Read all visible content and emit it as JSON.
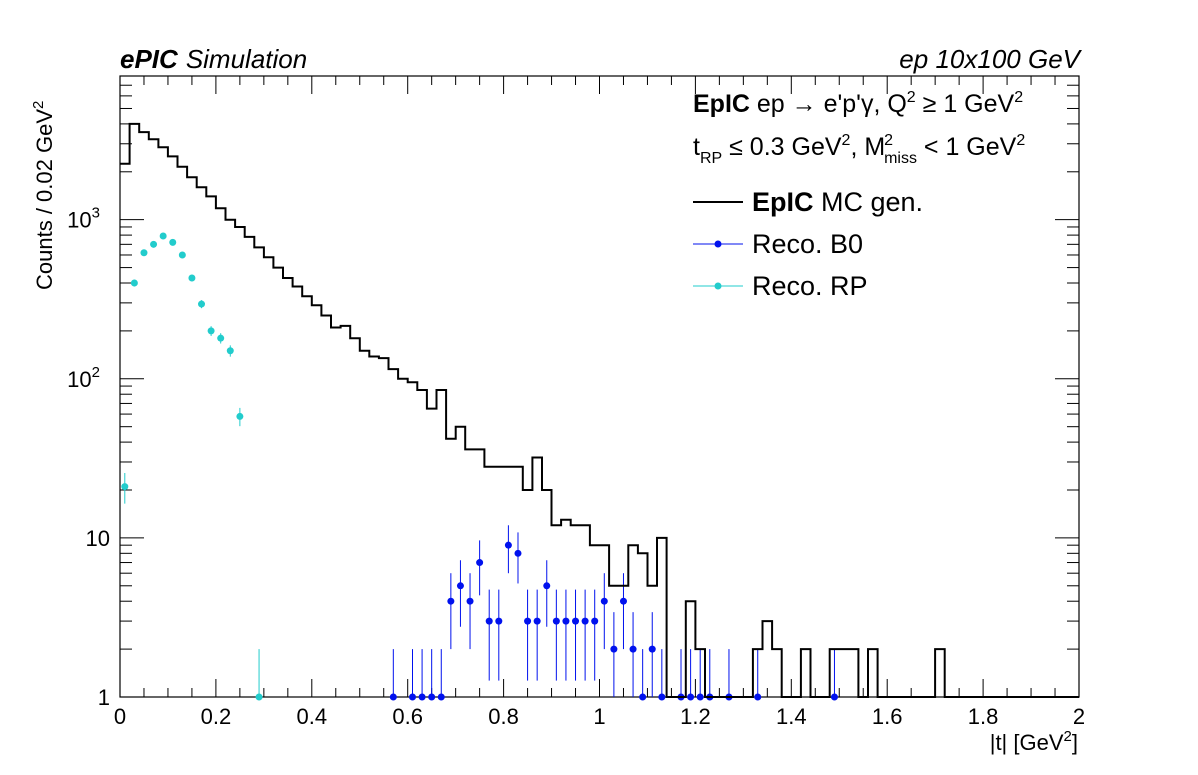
{
  "header": {
    "brand": "ePIC",
    "brand_suffix": "Simulation",
    "beam": "ep 10x100 GeV"
  },
  "labels": {
    "x_main": "|t| [GeV",
    "x_sup": "2",
    "x_end": "]",
    "y_main": "Counts / 0.02 GeV",
    "y_sup": "2"
  },
  "legend": {
    "line1_bold": "EpIC",
    "line1_main": " ep → e'p'γ, Q",
    "line1_sup": "2",
    "line1_end": " ≥ 1 GeV",
    "line1_sup2": "2",
    "line2_t": "t",
    "line2_sub": "RP",
    "line2_mid": " ≤ 0.3 GeV",
    "line2_sup": "2",
    "line2_mid2": ", M",
    "line2_sup2": "2",
    "line2_sub2": "miss",
    "line2_end": " < 1 GeV",
    "line2_sup3": "2",
    "entry1_bold": "EpIC",
    "entry1_rest": " MC gen.",
    "entry2": "Reco. B0",
    "entry3": "Reco. RP"
  },
  "chart_data": {
    "type": "line",
    "xlabel": "|t| [GeV²]",
    "ylabel": "Counts / 0.02 GeV²",
    "xlim": [
      0,
      2
    ],
    "ylim": [
      1,
      8000
    ],
    "yscale": "log",
    "x_ticks": [
      0,
      0.2,
      0.4,
      0.6,
      0.8,
      1,
      1.2,
      1.4,
      1.6,
      1.8,
      2
    ],
    "x_tick_labels": [
      "0",
      "0.2",
      "0.4",
      "0.6",
      "0.8",
      "1",
      "1.2",
      "1.4",
      "1.6",
      "1.8",
      "2"
    ],
    "y_tick_labels": [
      {
        "value": 1,
        "label": "1"
      },
      {
        "value": 10,
        "label": "10"
      },
      {
        "value": 100,
        "label": "10",
        "exp": "2"
      },
      {
        "value": 1000,
        "label": "10",
        "exp": "3"
      }
    ],
    "series": [
      {
        "name": "EpIC MC gen.",
        "style": "histogram",
        "color": "#000000",
        "bin_width": 0.02,
        "values": [
          2250,
          4000,
          3550,
          3200,
          2850,
          2500,
          2150,
          1850,
          1600,
          1400,
          1180,
          1000,
          900,
          780,
          670,
          580,
          500,
          430,
          380,
          330,
          290,
          250,
          210,
          215,
          180,
          150,
          138,
          135,
          115,
          100,
          95,
          85,
          65,
          85,
          42,
          50,
          36,
          36,
          28,
          28,
          28,
          28,
          20,
          32,
          20,
          12,
          13,
          12,
          12,
          9,
          9,
          5,
          5,
          9,
          8,
          5,
          10,
          1,
          1,
          4,
          2,
          1,
          1,
          1,
          1,
          1,
          2,
          3,
          2,
          1,
          1,
          2,
          1,
          1,
          2,
          2,
          2,
          1,
          2,
          1,
          1,
          1,
          1,
          1,
          1,
          2,
          1,
          1,
          1,
          1,
          1,
          1,
          1,
          1,
          1,
          1,
          1,
          1,
          1,
          1
        ]
      },
      {
        "name": "Reco. B0",
        "style": "points",
        "color": "#0011ee",
        "x": [
          0.57,
          0.61,
          0.63,
          0.65,
          0.67,
          0.69,
          0.71,
          0.73,
          0.75,
          0.77,
          0.79,
          0.81,
          0.83,
          0.85,
          0.87,
          0.89,
          0.91,
          0.93,
          0.95,
          0.97,
          0.99,
          1.01,
          1.03,
          1.05,
          1.07,
          1.09,
          1.11,
          1.13,
          1.17,
          1.19,
          1.21,
          1.23,
          1.27,
          1.33,
          1.49
        ],
        "y": [
          1,
          1,
          1,
          1,
          1,
          4,
          5,
          4,
          7,
          3,
          3,
          9,
          8,
          3,
          3,
          5,
          3,
          3,
          3,
          3,
          3,
          4,
          2,
          4,
          2,
          1,
          2,
          1,
          1,
          1,
          1,
          1,
          1,
          1,
          1
        ]
      },
      {
        "name": "Reco. RP",
        "style": "points",
        "color": "#22cccc",
        "x": [
          0.01,
          0.03,
          0.05,
          0.07,
          0.09,
          0.11,
          0.13,
          0.15,
          0.17,
          0.19,
          0.21,
          0.23,
          0.25,
          0.29
        ],
        "y": [
          21,
          400,
          620,
          700,
          790,
          720,
          600,
          430,
          295,
          200,
          180,
          150,
          58,
          1
        ]
      }
    ]
  }
}
